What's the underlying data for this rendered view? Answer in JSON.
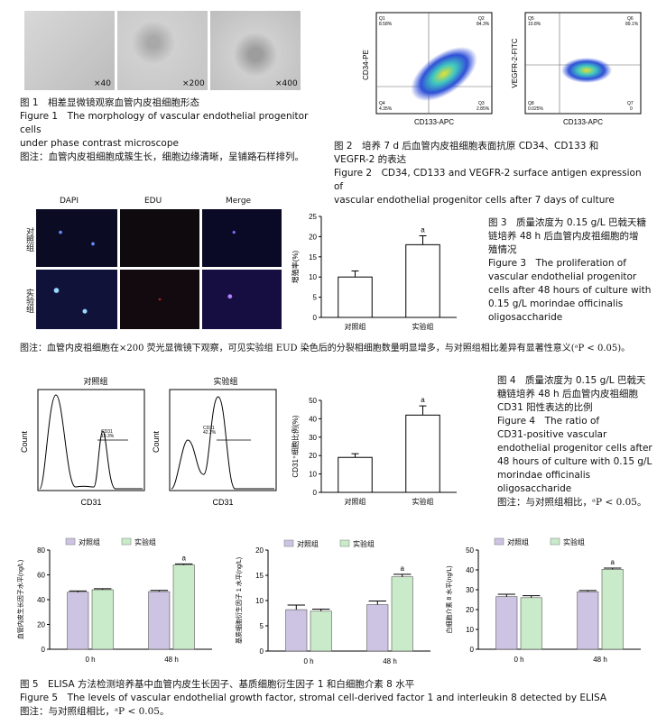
{
  "fig1": {
    "mags": [
      "×40",
      "×200",
      "×400"
    ],
    "caption_zh": "图 1　相差显微镜观察血管内皮祖细胞形态",
    "caption_en1": "Figure 1　The morphology of vascular endothelial progenitor cells",
    "caption_en2": "under phase contrast microscope",
    "note": "图注：血管内皮祖细胞成簇生长，细胞边缘清晰，呈铺路石样排列。"
  },
  "fig2": {
    "plot1": {
      "ylabel": "CD34-PE",
      "xlabel": "CD133-APC",
      "q": [
        "Q1",
        "Q2",
        "Q3",
        "Q4"
      ],
      "v": [
        "8.58%",
        "84.3%",
        "2.85%",
        "4.35%"
      ]
    },
    "plot2": {
      "ylabel": "VEGFR-2-FITC",
      "xlabel": "CD133-APC",
      "q": [
        "Q5",
        "Q6",
        "Q7",
        "Q8"
      ],
      "v": [
        "10.8%",
        "89.1%",
        "0",
        "0.025%"
      ]
    },
    "caption_zh1": "图 2　培养 7 d 后血管内皮祖细胞表面抗原 CD34、CD133 和",
    "caption_zh2": "VEGFR-2 的表达",
    "caption_en1": "Figure 2　CD34, CD133 and VEGFR-2 surface antigen expression of",
    "caption_en2": "vascular endothelial progenitor cells after 7 days of culture"
  },
  "fig3": {
    "cols": [
      "DAPI",
      "EDU",
      "Merge"
    ],
    "rows": [
      "对照组",
      "实验组"
    ],
    "caption_zh1": "图 3　质量浓度为 0.15 g/L 巴戟天糖",
    "caption_zh2": "链培养 48 h 后血管内皮祖细胞的增",
    "caption_zh3": "殖情况",
    "caption_en1": "Figure 3　The proliferation of",
    "caption_en2": "vascular endothelial progenitor",
    "caption_en3": "cells after 48 hours of culture with",
    "caption_en4": "0.15 g/L morindae officinalis",
    "caption_en5": "oligosaccharide",
    "note": "图注：血管内皮祖细胞在×200 荧光显微镜下观察，可见实验组 EUD 染色后的分裂相细胞数量明显增多，与对照组相比差异有显著性意义(ᵃP < 0.05)。"
  },
  "fig4": {
    "hist1_title": "对照组",
    "hist2_title": "实验组",
    "hist_ylabel": "Count",
    "hist_xlabel": "CD31",
    "hist1_gate": "CD31",
    "hist1_pct": "19.3%",
    "hist2_gate": "CD31",
    "hist2_pct": "42.2%",
    "caption_zh1": "图 4　质量浓度为 0.15 g/L 巴戟天",
    "caption_zh2": "糖链培养 48 h 后血管内皮祖细胞",
    "caption_zh3": "CD31 阳性表达的比例",
    "caption_en1": "Figure 4　The ratio of",
    "caption_en2": "CD31-positive vascular",
    "caption_en3": "endothelial progenitor cells after",
    "caption_en4": "48 hours of culture with 0.15 g/L",
    "caption_en5": "morindae officinalis",
    "caption_en6": "oligosaccharide",
    "note": "图注：与对照组相比，ᵃP < 0.05。"
  },
  "fig5": {
    "legend": [
      "对照组",
      "实验组"
    ],
    "caption_zh": "图 5　ELISA 方法检测培养基中血管内皮生长因子、基质细胞衍生因子 1 和白细胞介素 8 水平",
    "caption_en": "Figure 5　The levels of vascular endothelial growth factor, stromal cell-derived factor 1 and interleukin 8 detected by ELISA",
    "note": "图注：与对照组相比，ᵃP < 0.05。"
  },
  "chart_data": [
    {
      "id": "fig3-bar",
      "type": "bar",
      "ylabel": "增殖率(%)",
      "categories": [
        "对照组",
        "实验组"
      ],
      "values": [
        10,
        18
      ],
      "errors": [
        1.5,
        2.2
      ],
      "ylim": [
        0,
        25
      ],
      "yticks": [
        0,
        5,
        10,
        15,
        20,
        25
      ],
      "annotation": "a"
    },
    {
      "id": "fig4-bar",
      "type": "bar",
      "ylabel": "CD31⁺细胞比例(%)",
      "categories": [
        "对照组",
        "实验组"
      ],
      "values": [
        19,
        42
      ],
      "errors": [
        2,
        5
      ],
      "ylim": [
        0,
        50
      ],
      "yticks": [
        0,
        10,
        20,
        30,
        40,
        50
      ],
      "annotation": "a"
    },
    {
      "id": "fig5-vegf",
      "type": "bar",
      "ylabel": "血管内皮生长因子水平(ng/L)",
      "categories": [
        "0 h",
        "48 h"
      ],
      "series": [
        {
          "name": "对照组",
          "values": [
            46,
            46.5
          ],
          "errors": [
            1,
            1
          ]
        },
        {
          "name": "实验组",
          "values": [
            48,
            68
          ],
          "errors": [
            0.8,
            0.8
          ]
        }
      ],
      "ylim": [
        0,
        80
      ],
      "yticks": [
        0,
        20,
        40,
        60,
        80
      ],
      "annotation": "a"
    },
    {
      "id": "fig5-sdf",
      "type": "bar",
      "ylabel": "基质细胞衍生因子 1 水平(ng/L)",
      "categories": [
        "0 h",
        "48 h"
      ],
      "series": [
        {
          "name": "对照组",
          "values": [
            8.2,
            9.2
          ],
          "errors": [
            0.9,
            0.7
          ]
        },
        {
          "name": "实验组",
          "values": [
            7.9,
            14.7
          ],
          "errors": [
            0.4,
            0.5
          ]
        }
      ],
      "ylim": [
        0,
        20
      ],
      "yticks": [
        0,
        5,
        10,
        15,
        20
      ],
      "annotation": "a"
    },
    {
      "id": "fig5-il8",
      "type": "bar",
      "ylabel": "白细胞介素 8 水平(ng/L)",
      "categories": [
        "0 h",
        "48 h"
      ],
      "series": [
        {
          "name": "对照组",
          "values": [
            26.5,
            29
          ],
          "errors": [
            1.2,
            0.6
          ]
        },
        {
          "name": "实验组",
          "values": [
            26,
            40.3
          ],
          "errors": [
            1,
            0.6
          ]
        }
      ],
      "ylim": [
        0,
        50
      ],
      "yticks": [
        0,
        10,
        20,
        30,
        40,
        50
      ],
      "annotation": "a"
    }
  ],
  "colors": {
    "ctrl": "#cdc3e3",
    "exp": "#c9ebc9",
    "ctrl_line": "#8a7fb0",
    "exp_line": "#6fae6f"
  }
}
